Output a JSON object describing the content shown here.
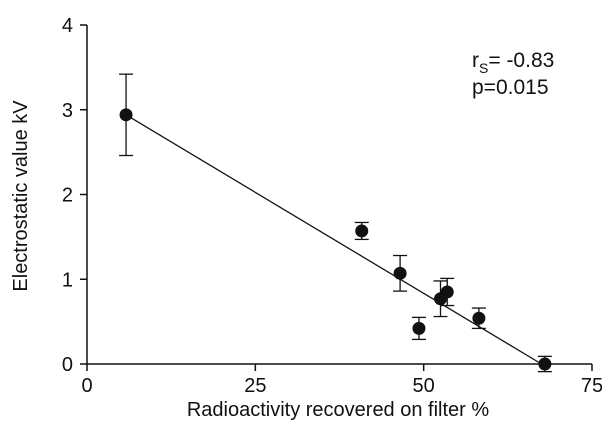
{
  "chart_data": {
    "type": "scatter",
    "xlabel": "Radioactivity recovered on filter  %",
    "ylabel": "Electrostatic value  kV",
    "xlim": [
      0,
      75
    ],
    "ylim": [
      0,
      4
    ],
    "x_ticks": [
      "0",
      "25",
      "50",
      "75"
    ],
    "y_ticks": [
      "0",
      "1",
      "2",
      "3",
      "4"
    ],
    "x_tick_values": [
      0,
      25,
      50,
      75
    ],
    "y_tick_values": [
      0,
      1,
      2,
      3,
      4
    ],
    "grid": false,
    "points": [
      {
        "x": 5.8,
        "y": 2.94,
        "err": 0.48
      },
      {
        "x": 40.8,
        "y": 1.57,
        "err": 0.1
      },
      {
        "x": 46.5,
        "y": 1.07,
        "err": 0.21
      },
      {
        "x": 49.3,
        "y": 0.42,
        "err": 0.13
      },
      {
        "x": 52.5,
        "y": 0.77,
        "err": 0.21
      },
      {
        "x": 53.5,
        "y": 0.85,
        "err": 0.16
      },
      {
        "x": 58.2,
        "y": 0.54,
        "err": 0.12
      },
      {
        "x": 68.0,
        "y": 0.0,
        "err": 0.09
      }
    ],
    "regression_line": {
      "x": [
        5.8,
        67.5
      ],
      "y": [
        2.94,
        0.0
      ]
    },
    "annotation": {
      "stat_name": "r",
      "stat_subscript": "S",
      "stat_value": "= -0.83",
      "p_value": "p=0.015"
    },
    "colors": {
      "points": "#111111",
      "line": "#111111",
      "axes": "#111111"
    }
  }
}
